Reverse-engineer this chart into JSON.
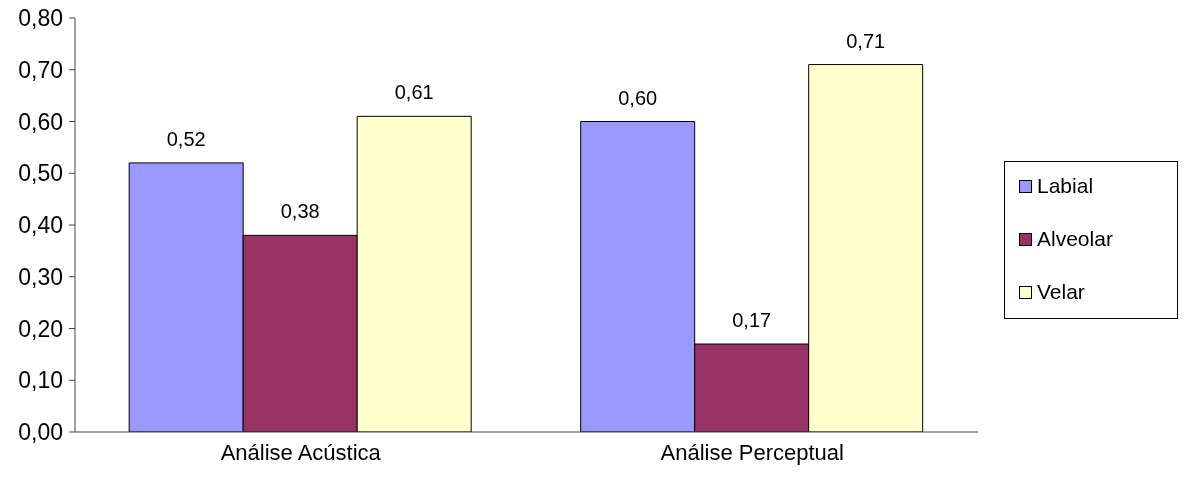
{
  "chart_data": {
    "type": "bar",
    "categories": [
      "Análise Acústica",
      "Análise Perceptual"
    ],
    "series": [
      {
        "name": "Labial",
        "color": "#9999ff",
        "values": [
          0.52,
          0.6
        ],
        "value_labels": [
          "0,52",
          "0,60"
        ]
      },
      {
        "name": "Alveolar",
        "color": "#993366",
        "values": [
          0.38,
          0.17
        ],
        "value_labels": [
          "0,38",
          "0,17"
        ]
      },
      {
        "name": "Velar",
        "color": "#ffffcc",
        "values": [
          0.61,
          0.71
        ],
        "value_labels": [
          "0,61",
          "0,71"
        ]
      }
    ],
    "ylim": [
      0,
      0.8
    ],
    "yticks": [
      {
        "value": 0,
        "label": "0,00"
      },
      {
        "value": 0.1,
        "label": "0,10"
      },
      {
        "value": 0.2,
        "label": "0,20"
      },
      {
        "value": 0.3,
        "label": "0,30"
      },
      {
        "value": 0.4,
        "label": "0,40"
      },
      {
        "value": 0.5,
        "label": "0,50"
      },
      {
        "value": 0.6,
        "label": "0,60"
      },
      {
        "value": 0.7,
        "label": "0,70"
      },
      {
        "value": 0.8,
        "label": "0,80"
      }
    ],
    "legend": "right"
  }
}
